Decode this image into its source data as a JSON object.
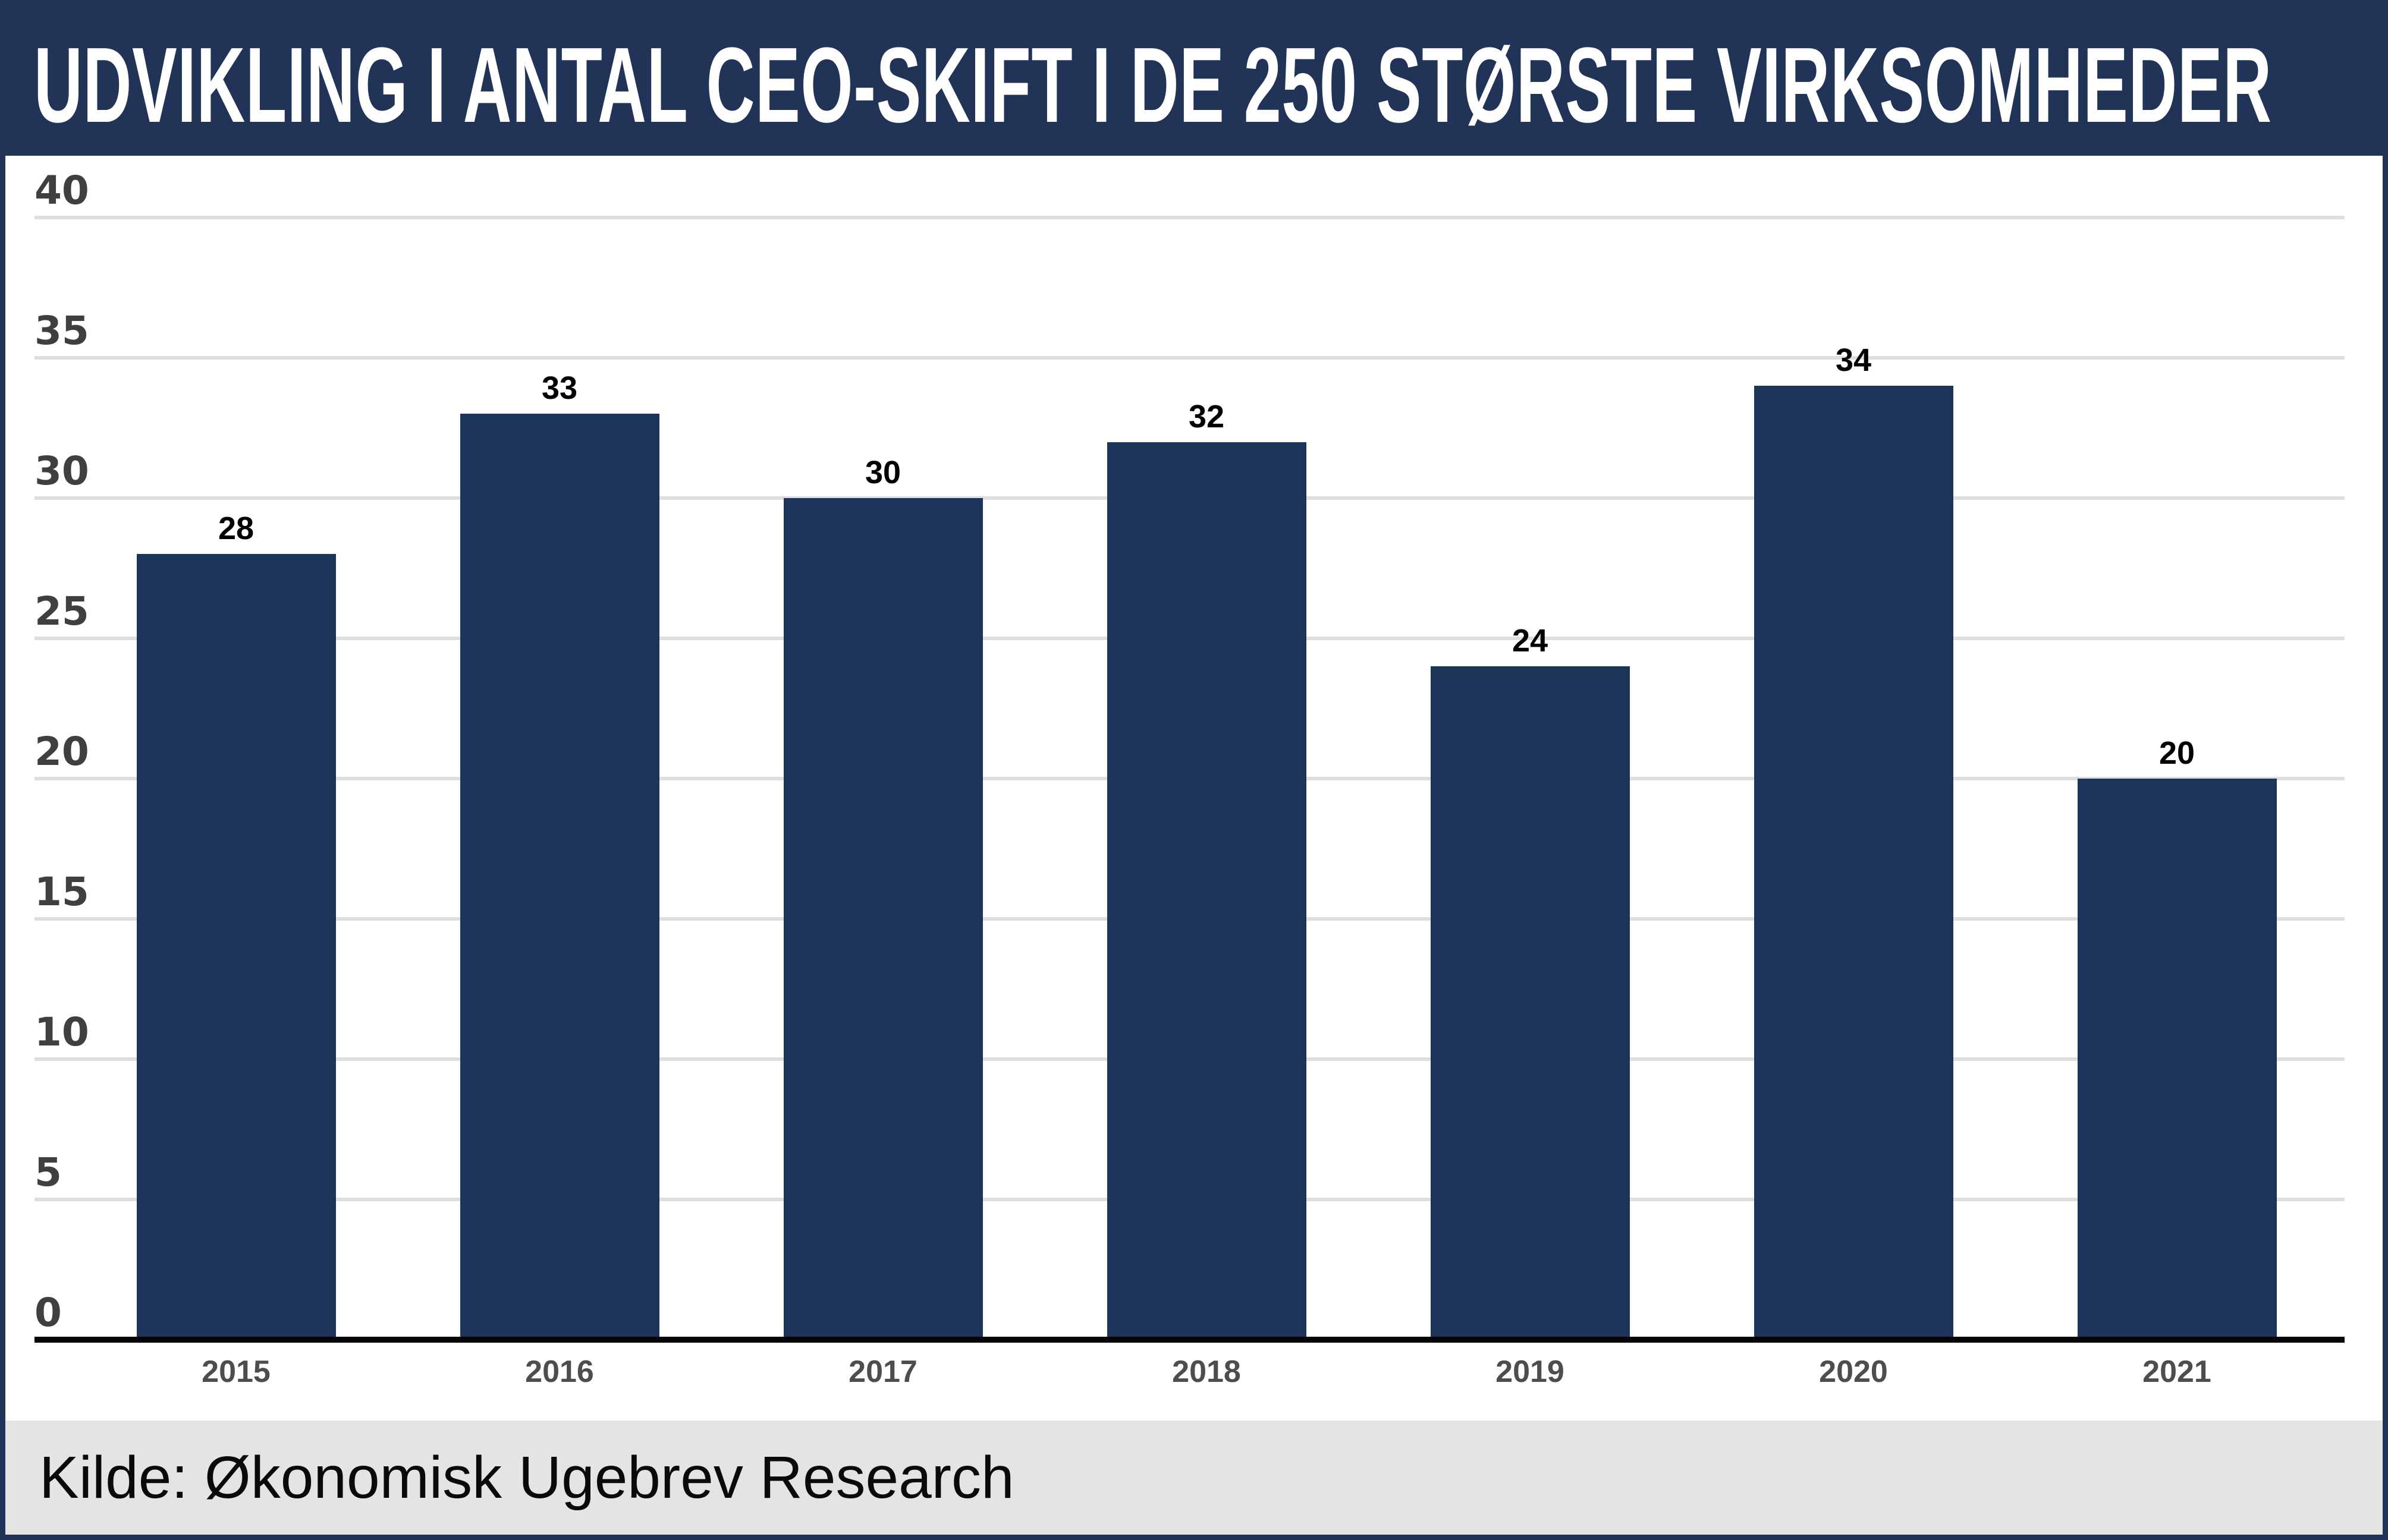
{
  "header": {
    "title": "UDVIKLING I ANTAL CEO-SKIFT I DE 250 STØRSTE VIRKSOMHEDER"
  },
  "footer": {
    "source": "Kilde: Økonomisk Ugebrev Research"
  },
  "colors": {
    "frame_navy": "#213457",
    "bar_navy": "#1c3458",
    "chart_background": "#ffffff",
    "gridline": "#dedede",
    "axis_line": "#050505",
    "ytick_label": "#3f3f3f",
    "xtick_label": "#4d4d4d",
    "value_label": "#000000",
    "footer_background": "#e4e4e2",
    "title_color": "#ffffff"
  },
  "chart_data": {
    "type": "bar",
    "title": "UDVIKLING I ANTAL CEO-SKIFT I DE 250 STØRSTE VIRKSOMHEDER",
    "categories": [
      "2015",
      "2016",
      "2017",
      "2018",
      "2019",
      "2020",
      "2021"
    ],
    "values": [
      28,
      33,
      30,
      32,
      24,
      34,
      20
    ],
    "xlabel": "",
    "ylabel": "",
    "ylim": [
      0,
      40
    ],
    "yticks": [
      0,
      5,
      10,
      15,
      20,
      25,
      30,
      35,
      40
    ],
    "grid": true,
    "legend": false,
    "value_labels_shown": true,
    "source_note": "Kilde: Økonomisk Ugebrev Research"
  }
}
